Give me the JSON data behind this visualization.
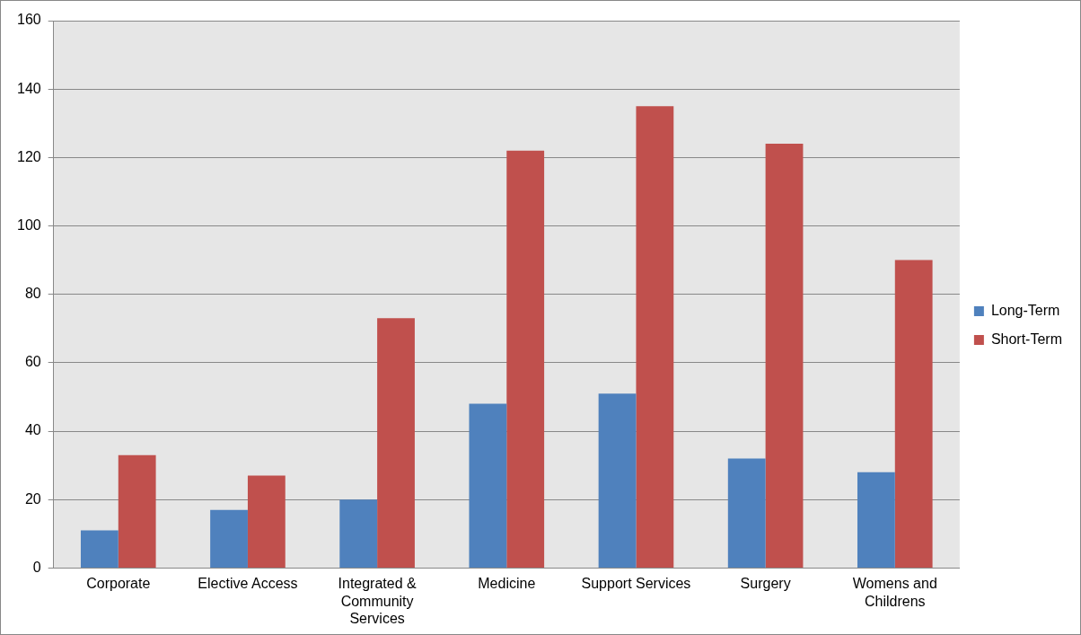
{
  "chart_data": {
    "type": "bar",
    "categories": [
      "Corporate",
      "Elective Access",
      "Integrated & Community Services",
      "Medicine",
      "Support Services",
      "Surgery",
      "Womens and Childrens"
    ],
    "series": [
      {
        "name": "Long-Term",
        "color": "#4f81bd",
        "values": [
          11,
          17,
          20,
          48,
          51,
          32,
          28
        ]
      },
      {
        "name": "Short-Term",
        "color": "#c0504d",
        "values": [
          33,
          27,
          73,
          122,
          135,
          124,
          90
        ]
      }
    ],
    "ylim": [
      0,
      160
    ],
    "yticks": [
      0,
      20,
      40,
      60,
      80,
      100,
      120,
      140,
      160
    ],
    "grid": "y",
    "legend": "right"
  }
}
